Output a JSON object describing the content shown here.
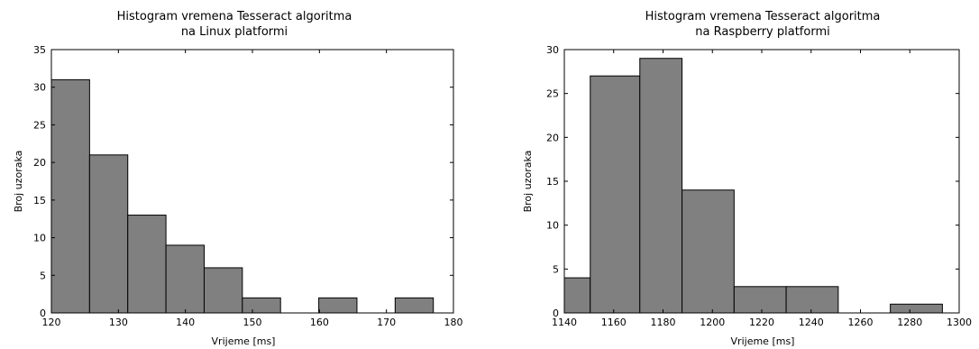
{
  "chart_data": [
    {
      "type": "bar",
      "title_line1": "Histogram vremena Tesseract algoritma",
      "title_line2": "na Linux platformi",
      "xlabel": "Vrijeme [ms]",
      "ylabel": "Broj uzoraka",
      "xlim": [
        120,
        180
      ],
      "ylim": [
        0,
        35
      ],
      "xticks": [
        120,
        130,
        140,
        150,
        160,
        170,
        180
      ],
      "yticks": [
        0,
        5,
        10,
        15,
        20,
        25,
        30,
        35
      ],
      "bins": [
        {
          "x0": 120.0,
          "x1": 125.7,
          "count": 31
        },
        {
          "x0": 125.7,
          "x1": 131.4,
          "count": 21
        },
        {
          "x0": 131.4,
          "x1": 137.1,
          "count": 13
        },
        {
          "x0": 137.1,
          "x1": 142.8,
          "count": 9
        },
        {
          "x0": 142.8,
          "x1": 148.5,
          "count": 6
        },
        {
          "x0": 148.5,
          "x1": 154.2,
          "count": 2
        },
        {
          "x0": 154.2,
          "x1": 159.9,
          "count": 0
        },
        {
          "x0": 159.9,
          "x1": 165.6,
          "count": 2
        },
        {
          "x0": 165.6,
          "x1": 171.3,
          "count": 0
        },
        {
          "x0": 171.3,
          "x1": 177.0,
          "count": 2
        }
      ],
      "bar_color": "#808080",
      "edge_color": "#000000",
      "grid": false
    },
    {
      "type": "bar",
      "title_line1": "Histogram vremena Tesseract algoritma",
      "title_line2": "na Raspberry platformi",
      "xlabel": "Vrijeme [ms]",
      "ylabel": "Broj uzoraka",
      "xlim": [
        1140,
        1300
      ],
      "ylim": [
        0,
        30
      ],
      "xticks": [
        1140,
        1160,
        1180,
        1200,
        1220,
        1240,
        1260,
        1280,
        1300
      ],
      "yticks": [
        0,
        5,
        10,
        15,
        20,
        25,
        30
      ],
      "bins": [
        {
          "x0": 1140.0,
          "x1": 1150.5,
          "count": 4
        },
        {
          "x0": 1150.5,
          "x1": 1170.6,
          "count": 27
        },
        {
          "x0": 1170.6,
          "x1": 1187.7,
          "count": 29
        },
        {
          "x0": 1187.7,
          "x1": 1208.8,
          "count": 14
        },
        {
          "x0": 1208.8,
          "x1": 1229.9,
          "count": 3
        },
        {
          "x0": 1229.9,
          "x1": 1251.0,
          "count": 3
        },
        {
          "x0": 1251.0,
          "x1": 1272.1,
          "count": 0
        },
        {
          "x0": 1272.1,
          "x1": 1293.2,
          "count": 1
        }
      ],
      "bar_color": "#808080",
      "edge_color": "#000000",
      "grid": false
    }
  ]
}
